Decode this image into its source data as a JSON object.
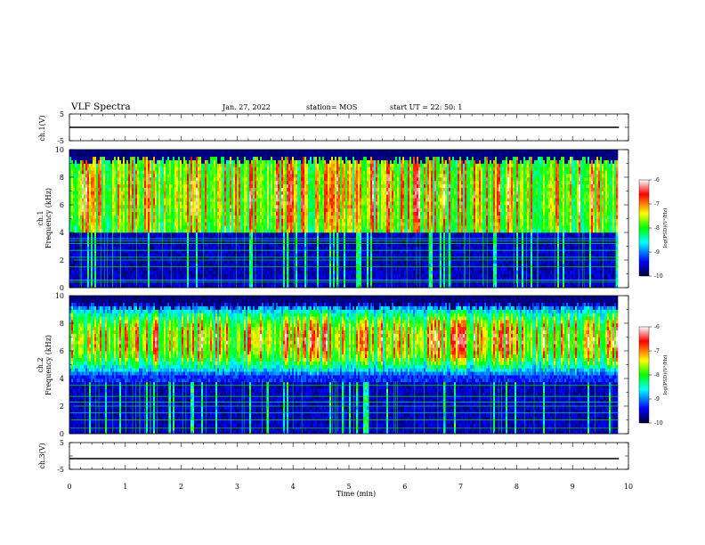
{
  "header": {
    "title": "VLF Spectra",
    "date": "Jan. 27, 2022",
    "station": "station= MOS",
    "start": "start UT =  22: 50: 1"
  },
  "chart_data": [
    {
      "type": "line",
      "name": "ch1-waveform",
      "ylabel": "ch.1(V)",
      "ylim": [
        -5,
        5
      ],
      "ytick_labels": [
        "5",
        "-5"
      ],
      "xlim": [
        0,
        10
      ],
      "grid": false,
      "x": [
        0,
        9.83
      ],
      "y": [
        0,
        0
      ]
    },
    {
      "type": "heatmap",
      "name": "ch1-spectrogram",
      "ylabel": "ch.1\nFrequency (kHz)",
      "ylim": [
        0,
        10
      ],
      "ytick_labels": [
        "0",
        "2",
        "4",
        "6",
        "8",
        "10"
      ],
      "xlim": [
        0,
        10
      ],
      "data_end_min": 9.83,
      "sferic_band_khz": [
        4,
        9.6
      ],
      "narrowband_lines_khz": [
        0.4,
        0.55,
        1.5,
        2.0,
        2.2,
        2.7,
        3.2,
        3.4,
        3.55
      ],
      "colorbar": {
        "label": "log(PSD)(V²/Hz)",
        "range": [
          -10,
          -6
        ],
        "ticks": [
          -10,
          -9,
          -8,
          -7,
          -6
        ],
        "tick_labels": [
          "-10",
          "-9",
          "-8",
          "-7",
          "-6"
        ],
        "colormap": [
          "#000033",
          "#0000ff",
          "#00ffff",
          "#00ff00",
          "#ffff00",
          "#ff0000",
          "#ffffff"
        ]
      }
    },
    {
      "type": "heatmap",
      "name": "ch2-spectrogram",
      "ylabel": "ch.2\nFrequency (kHz)",
      "ylim": [
        0,
        10
      ],
      "ytick_labels": [
        "0",
        "2",
        "4",
        "6",
        "8",
        "10"
      ],
      "xlim": [
        0,
        10
      ],
      "data_end_min": 9.83,
      "sferic_band_khz": [
        3.8,
        9.6
      ],
      "peak_khz": 6.8,
      "narrowband_lines_khz": [
        0.4,
        1.0,
        1.5,
        2.0,
        2.3,
        2.7,
        3.5
      ],
      "colorbar": {
        "label": "log(PSD)(V²/Hz)",
        "range": [
          -10,
          -6
        ],
        "ticks": [
          -10,
          -9,
          -8,
          -7,
          -6
        ],
        "tick_labels": [
          "-10",
          "-9",
          "-8",
          "-7",
          "-6"
        ],
        "colormap": [
          "#000033",
          "#0000ff",
          "#00ffff",
          "#00ff00",
          "#ffff00",
          "#ff0000",
          "#ffffff"
        ]
      }
    },
    {
      "type": "line",
      "name": "ch3-waveform",
      "ylabel": "ch.3(V)",
      "ylim": [
        -5,
        5
      ],
      "ytick_labels": [
        "5",
        "-5"
      ],
      "xlim": [
        0,
        10
      ],
      "grid": false,
      "x": [
        0,
        9.83
      ],
      "y": [
        -1,
        -1
      ]
    }
  ],
  "xaxis": {
    "label": "Time  (min)",
    "range": [
      0,
      10
    ],
    "ticks": [
      0,
      1,
      2,
      3,
      4,
      5,
      6,
      7,
      8,
      9,
      10
    ],
    "tick_labels": [
      "0",
      "1",
      "2",
      "3",
      "4",
      "5",
      "6",
      "7",
      "8",
      "9",
      "10"
    ]
  }
}
